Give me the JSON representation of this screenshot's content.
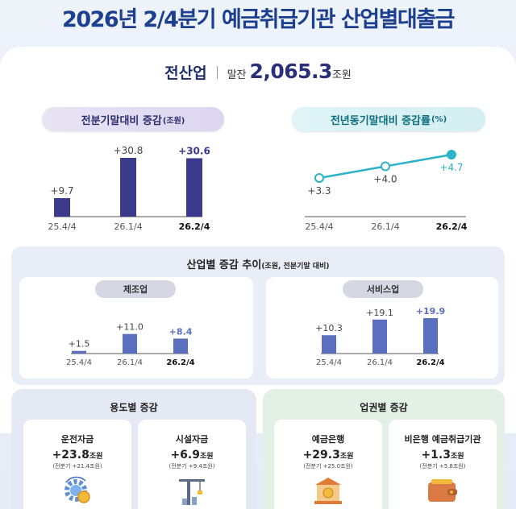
{
  "title": "2026년 2/4분기 예금취급기관 산업별대출금",
  "total": {
    "label": "전산업",
    "prefix": "말잔",
    "value": "2,065.3",
    "unit": "조원"
  },
  "charts": {
    "qoq_title": "전분기말대비 증감",
    "qoq_unit": "(조원)",
    "yoy_title": "전년동기말대비 증감률",
    "yoy_unit": "(%)",
    "trend_title": "산업별 증감 추이",
    "trend_unit": "(조원, 전분기말 대비)",
    "manufacturing_label": "제조업",
    "services_label": "서비스업"
  },
  "chart_data": [
    {
      "type": "bar",
      "title": "전분기말대비 증감(조원)",
      "categories": [
        "25.4/4",
        "26.1/4",
        "26.2/4"
      ],
      "values": [
        9.7,
        30.8,
        30.6
      ],
      "value_labels": [
        "+9.7",
        "+30.8",
        "+30.6"
      ],
      "highlight_index": 2
    },
    {
      "type": "line",
      "title": "전년동기말대비 증감률(%)",
      "categories": [
        "25.4/4",
        "26.1/4",
        "26.2/4"
      ],
      "values": [
        3.3,
        4.0,
        4.7
      ],
      "value_labels": [
        "+3.3",
        "+4.0",
        "+4.7"
      ],
      "highlight_index": 2
    },
    {
      "type": "bar",
      "title": "제조업",
      "categories": [
        "25.4/4",
        "26.1/4",
        "26.2/4"
      ],
      "values": [
        1.5,
        11.0,
        8.4
      ],
      "value_labels": [
        "+1.5",
        "+11.0",
        "+8.4"
      ],
      "highlight_index": 2
    },
    {
      "type": "bar",
      "title": "서비스업",
      "categories": [
        "25.4/4",
        "26.1/4",
        "26.2/4"
      ],
      "values": [
        10.3,
        19.1,
        19.9
      ],
      "value_labels": [
        "+10.3",
        "+19.1",
        "+19.9"
      ],
      "highlight_index": 2
    }
  ],
  "usage": {
    "title": "용도별 증감",
    "items": [
      {
        "name": "운전자금",
        "value": "+23.8",
        "unit": "조원",
        "prev": "(전분기 +21.4조원)",
        "icon": "gear-coin-icon"
      },
      {
        "name": "시설자금",
        "value": "+6.9",
        "unit": "조원",
        "prev": "(전분기 +9.4조원)",
        "icon": "crane-icon"
      }
    ]
  },
  "sector": {
    "title": "업권별 증감",
    "items": [
      {
        "name": "예금은행",
        "value": "+29.3",
        "unit": "조원",
        "prev": "(전분기 +25.0조원)",
        "icon": "bank-icon"
      },
      {
        "name": "비은행 예금취급기관",
        "value": "+1.3",
        "unit": "조원",
        "prev": "(전분기 +5.8조원)",
        "icon": "wallet-icon"
      }
    ]
  },
  "colors": {
    "title": "#1c3f8f",
    "bar_dark": "#3b3a8c",
    "bar_light": "#5a6fc0",
    "line": "#2bb3c8",
    "usage_bg": "#e4e9f3",
    "sector_bg": "#e3f0e6"
  }
}
